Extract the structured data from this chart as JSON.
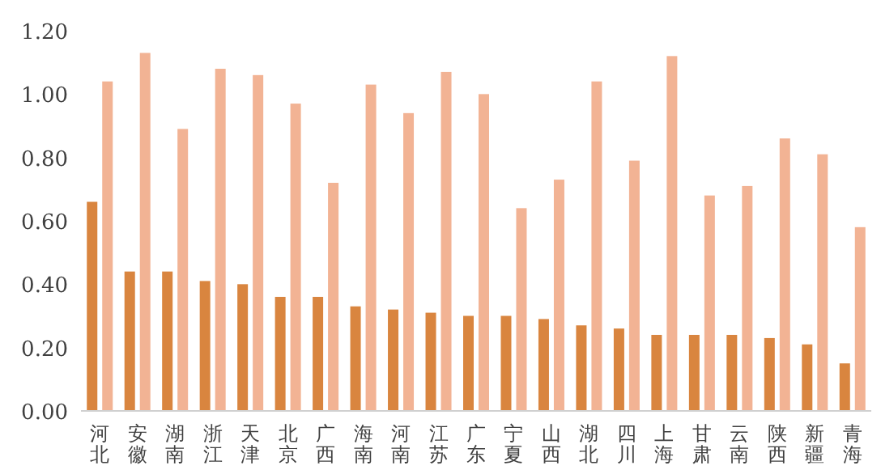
{
  "chart_data": {
    "type": "bar",
    "categories": [
      "河北",
      "安徽",
      "湖南",
      "浙江",
      "天津",
      "北京",
      "广西",
      "海南",
      "河南",
      "江苏",
      "广东",
      "宁夏",
      "山西",
      "湖北",
      "四川",
      "上海",
      "甘肃",
      "云南",
      "陕西",
      "新疆",
      "青海"
    ],
    "series": [
      {
        "color": "#d9853f",
        "values": [
          0.66,
          0.44,
          0.44,
          0.41,
          0.4,
          0.36,
          0.36,
          0.33,
          0.32,
          0.31,
          0.3,
          0.3,
          0.29,
          0.27,
          0.26,
          0.24,
          0.24,
          0.24,
          0.23,
          0.21,
          0.15
        ]
      },
      {
        "color": "#f2b394",
        "values": [
          1.04,
          1.13,
          0.89,
          1.08,
          1.06,
          0.97,
          0.72,
          1.03,
          0.94,
          1.07,
          1.0,
          0.64,
          0.73,
          1.04,
          0.79,
          1.12,
          0.68,
          0.71,
          0.86,
          0.81,
          0.58
        ]
      }
    ],
    "ylim": [
      0,
      1.2
    ],
    "yticks": [
      {
        "value": 0,
        "label": "0.00"
      },
      {
        "value": 0.2,
        "label": "0.20"
      },
      {
        "value": 0.4,
        "label": "0.40"
      },
      {
        "value": 0.6,
        "label": "0.60"
      },
      {
        "value": 0.8,
        "label": "0.80"
      },
      {
        "value": 1,
        "label": "1.00"
      },
      {
        "value": 1.2,
        "label": "1.20"
      }
    ],
    "grid": false
  }
}
